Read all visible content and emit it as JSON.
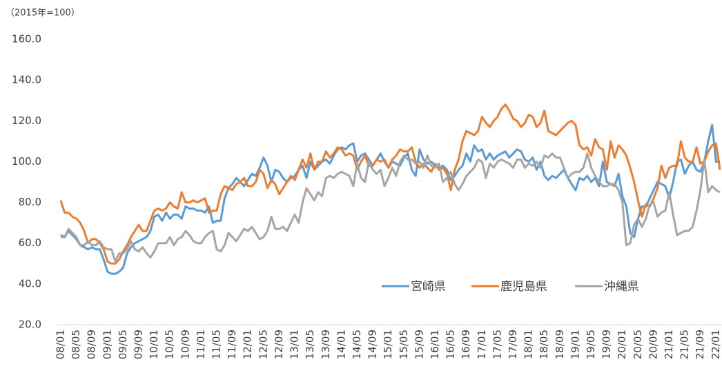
{
  "chart_data": {
    "type": "line",
    "ylabel": "（2015年=100）",
    "ylim": [
      20,
      160
    ],
    "yticks": [
      {
        "value": 20,
        "label": "20.0"
      },
      {
        "value": 40,
        "label": "40.0"
      },
      {
        "value": 60,
        "label": "60.0"
      },
      {
        "value": 80,
        "label": "80.0"
      },
      {
        "value": 100,
        "label": "100.0"
      },
      {
        "value": 120,
        "label": "120.0"
      },
      {
        "value": 140,
        "label": "140.0"
      },
      {
        "value": 160,
        "label": "160.0"
      }
    ],
    "grid": false,
    "legend": "bottom-right",
    "categories": [
      "08/01",
      null,
      null,
      null,
      "08/05",
      null,
      null,
      null,
      "08/09",
      null,
      null,
      null,
      "09/01",
      null,
      null,
      null,
      "09/05",
      null,
      null,
      null,
      "09/09",
      null,
      null,
      null,
      "10/01",
      null,
      null,
      null,
      "10/05",
      null,
      null,
      null,
      "10/09",
      null,
      null,
      null,
      "11/01",
      null,
      null,
      null,
      "11/05",
      null,
      null,
      null,
      "11/09",
      null,
      null,
      null,
      "12/01",
      null,
      null,
      null,
      "12/05",
      null,
      null,
      null,
      "12/09",
      null,
      null,
      null,
      "13/01",
      null,
      null,
      null,
      "13/05",
      null,
      null,
      null,
      "13/09",
      null,
      null,
      null,
      "14/01",
      null,
      null,
      null,
      "14/05",
      null,
      null,
      null,
      "14/09",
      null,
      null,
      null,
      "15/01",
      null,
      null,
      null,
      "15/05",
      null,
      null,
      null,
      "15/09",
      null,
      null,
      null,
      "16/01",
      null,
      null,
      null,
      "16/05",
      null,
      null,
      null,
      "16/09",
      null,
      null,
      null,
      "17/01",
      null,
      null,
      null,
      "17/05",
      null,
      null,
      null,
      "17/09",
      null,
      null,
      null,
      "18/01",
      null,
      null,
      null,
      "18/05",
      null,
      null,
      null,
      "18/09",
      null,
      null,
      null,
      "19/01",
      null,
      null,
      null,
      "19/05",
      null,
      null,
      null,
      "19/09",
      null,
      null,
      null,
      "20/01",
      null,
      null,
      null,
      "20/05",
      null,
      null,
      null,
      "20/09",
      null,
      null,
      null,
      "21/01",
      null,
      null,
      null,
      "21/05",
      null,
      null,
      null,
      "21/09",
      null,
      null,
      null,
      "22/01",
      null
    ],
    "series": [
      {
        "name": "宮崎県",
        "color": "#5b9bd5",
        "values": [
          64,
          63,
          66,
          64,
          62,
          59,
          58,
          57,
          58,
          57,
          57,
          52,
          46,
          45,
          45,
          46,
          48,
          55,
          58,
          60,
          61,
          62,
          63,
          66,
          73,
          74,
          71,
          75,
          72,
          74,
          74,
          72,
          78,
          77,
          77,
          76,
          76,
          75,
          78,
          70,
          71,
          71,
          82,
          87,
          89,
          92,
          90,
          88,
          91,
          94,
          93,
          97,
          102,
          98,
          90,
          96,
          95,
          92,
          90,
          92,
          93,
          96,
          98,
          92,
          100,
          96,
          98,
          100,
          101,
          99,
          103,
          106,
          107,
          106,
          108,
          109,
          100,
          103,
          104,
          101,
          98,
          101,
          104,
          100,
          97,
          100,
          99,
          98,
          102,
          104,
          96,
          93,
          106,
          101,
          99,
          100,
          98,
          97,
          98,
          96,
          91,
          93,
          96,
          98,
          104,
          100,
          108,
          105,
          106,
          101,
          104,
          101,
          103,
          104,
          105,
          102,
          104,
          106,
          105,
          101,
          100,
          102,
          96,
          100,
          93,
          91,
          93,
          92,
          94,
          96,
          92,
          89,
          86,
          92,
          91,
          93,
          90,
          92,
          88,
          100,
          90,
          89,
          88,
          94,
          83,
          78,
          65,
          63,
          72,
          78,
          78,
          82,
          86,
          90,
          89,
          88,
          82,
          90,
          100,
          101,
          94,
          98,
          100,
          96,
          95,
          100,
          110,
          118,
          100,
          100
        ]
      },
      {
        "name": "鹿児島県",
        "color": "#ed7d31",
        "values": [
          81,
          75,
          75,
          73,
          72,
          70,
          66,
          60,
          62,
          62,
          60,
          57,
          51,
          50,
          50,
          52,
          56,
          59,
          63,
          66,
          69,
          66,
          66,
          71,
          76,
          77,
          76,
          77,
          80,
          78,
          77,
          85,
          80,
          80,
          81,
          80,
          81,
          82,
          75,
          76,
          76,
          84,
          88,
          87,
          86,
          89,
          90,
          92,
          88,
          88,
          90,
          96,
          94,
          87,
          91,
          89,
          84,
          87,
          90,
          93,
          91,
          96,
          101,
          97,
          104,
          96,
          100,
          100,
          105,
          102,
          104,
          107,
          106,
          103,
          104,
          103,
          96,
          100,
          103,
          98,
          98,
          101,
          100,
          101,
          97,
          101,
          103,
          106,
          105,
          105,
          107,
          100,
          97,
          99,
          97,
          95,
          99,
          96,
          97,
          94,
          86,
          96,
          101,
          110,
          115,
          114,
          113,
          115,
          122,
          119,
          117,
          120,
          122,
          126,
          128,
          125,
          121,
          120,
          117,
          119,
          123,
          122,
          117,
          119,
          125,
          115,
          114,
          113,
          115,
          117,
          119,
          120,
          118,
          108,
          106,
          107,
          103,
          111,
          107,
          106,
          96,
          110,
          102,
          108,
          106,
          103,
          97,
          90,
          81,
          73,
          79,
          78,
          82,
          87,
          98,
          92,
          97,
          98,
          98,
          110,
          102,
          100,
          100,
          107,
          99,
          100,
          105,
          108,
          109,
          96
        ]
      },
      {
        "name": "沖縄県",
        "color": "#a5a5a5",
        "values": [
          63,
          63,
          67,
          65,
          63,
          59,
          59,
          61,
          59,
          59,
          61,
          58,
          57,
          57,
          51,
          55,
          55,
          57,
          61,
          57,
          56,
          58,
          55,
          53,
          56,
          60,
          60,
          60,
          63,
          59,
          62,
          63,
          66,
          64,
          61,
          60,
          60,
          63,
          65,
          66,
          57,
          56,
          59,
          65,
          63,
          61,
          64,
          67,
          66,
          68,
          65,
          62,
          63,
          66,
          73,
          67,
          67,
          68,
          66,
          70,
          74,
          70,
          80,
          87,
          84,
          81,
          85,
          83,
          92,
          93,
          92,
          94,
          95,
          94,
          93,
          88,
          99,
          92,
          90,
          100,
          96,
          94,
          96,
          88,
          92,
          97,
          93,
          100,
          103,
          101,
          101,
          99,
          100,
          97,
          103,
          98,
          97,
          99,
          90,
          92,
          95,
          89,
          86,
          89,
          93,
          95,
          97,
          101,
          100,
          92,
          99,
          97,
          100,
          101,
          100,
          99,
          97,
          101,
          101,
          97,
          99,
          98,
          100,
          97,
          103,
          102,
          104,
          102,
          102,
          97,
          92,
          94,
          95,
          95,
          97,
          104,
          97,
          93,
          90,
          88,
          88,
          89,
          89,
          86,
          80,
          59,
          60,
          69,
          72,
          68,
          72,
          79,
          80,
          73,
          75,
          76,
          85,
          74,
          64,
          65,
          66,
          66,
          68,
          76,
          86,
          101,
          85,
          88,
          86,
          85
        ]
      }
    ]
  }
}
